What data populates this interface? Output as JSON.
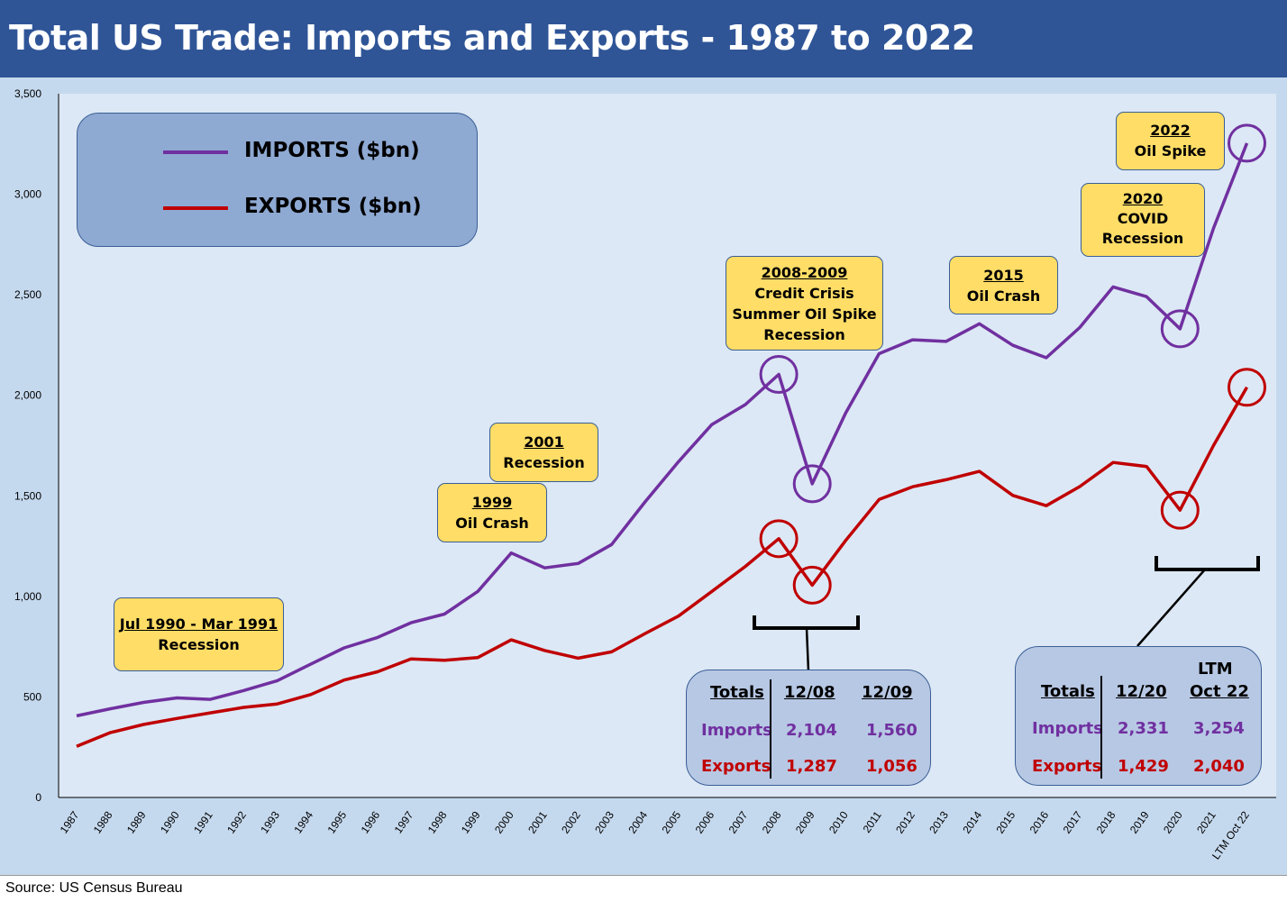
{
  "title": "Total US Trade: Imports and Exports - 1987 to 2022",
  "source": "Source: US Census Bureau",
  "colors": {
    "imports": "#7030a0",
    "exports": "#c00000",
    "plot_bg": "#dce8f5",
    "annotation": "#ffdd66"
  },
  "legend": {
    "imports": "IMPORTS ($bn)",
    "exports": "EXPORTS ($bn)"
  },
  "annotations": [
    {
      "title": "Jul 1990 - Mar 1991",
      "lines": [
        "Recession"
      ]
    },
    {
      "title": "1999",
      "lines": [
        "Oil Crash"
      ]
    },
    {
      "title": "2001",
      "lines": [
        "Recession"
      ]
    },
    {
      "title": "2008-2009",
      "lines": [
        "Credit Crisis",
        "Summer Oil Spike",
        "Recession"
      ]
    },
    {
      "title": "2015",
      "lines": [
        "Oil Crash"
      ]
    },
    {
      "title": "2020",
      "lines": [
        "COVID",
        "Recession"
      ]
    },
    {
      "title": "2022",
      "lines": [
        "Oil Spike"
      ]
    }
  ],
  "table_2008": {
    "header": [
      "Totals",
      "12/08",
      "12/09"
    ],
    "imports": [
      "Imports",
      "2,104",
      "1,560"
    ],
    "exports": [
      "Exports",
      "1,287",
      "1,056"
    ]
  },
  "table_2020": {
    "header_top": "LTM",
    "header": [
      "Totals",
      "12/20",
      "Oct 22"
    ],
    "imports": [
      "Imports",
      "2,331",
      "3,254"
    ],
    "exports": [
      "Exports",
      "1,429",
      "2,040"
    ]
  },
  "chart_data": {
    "type": "line",
    "title": "Total US Trade: Imports and Exports - 1987 to 2022",
    "x": [
      "1987",
      "1988",
      "1989",
      "1990",
      "1991",
      "1992",
      "1993",
      "1994",
      "1995",
      "1996",
      "1997",
      "1998",
      "1999",
      "2000",
      "2001",
      "2002",
      "2003",
      "2004",
      "2005",
      "2006",
      "2007",
      "2008",
      "2009",
      "2010",
      "2011",
      "2012",
      "2013",
      "2014",
      "2015",
      "2016",
      "2017",
      "2018",
      "2019",
      "2020",
      "2021",
      "LTM Oct 22"
    ],
    "series": [
      {
        "name": "IMPORTS ($bn)",
        "values": [
          406,
          441,
          473,
          495,
          488,
          532,
          581,
          663,
          744,
          796,
          869,
          912,
          1025,
          1216,
          1142,
          1164,
          1258,
          1470,
          1670,
          1855,
          1954,
          2104,
          1560,
          1912,
          2207,
          2276,
          2268,
          2356,
          2249,
          2187,
          2337,
          2539,
          2491,
          2331,
          2830,
          3254
        ]
      },
      {
        "name": "EXPORTS ($bn)",
        "values": [
          254,
          322,
          363,
          393,
          421,
          448,
          465,
          512,
          584,
          625,
          689,
          682,
          696,
          784,
          731,
          693,
          724,
          815,
          902,
          1025,
          1149,
          1287,
          1056,
          1278,
          1482,
          1545,
          1580,
          1622,
          1502,
          1451,
          1546,
          1666,
          1646,
          1429,
          1750,
          2040
        ]
      }
    ],
    "ylim": [
      0,
      3500
    ],
    "yticks": [
      0,
      500,
      1000,
      1500,
      2000,
      2500,
      3000,
      3500
    ],
    "ytick_labels": [
      "0",
      "500",
      "1,000",
      "1,500",
      "2,000",
      "2,500",
      "3,000",
      "3,500"
    ],
    "highlighted": [
      "2008",
      "2009",
      "2020",
      "LTM Oct 22"
    ],
    "grid": false,
    "legend_position": "top-left"
  }
}
